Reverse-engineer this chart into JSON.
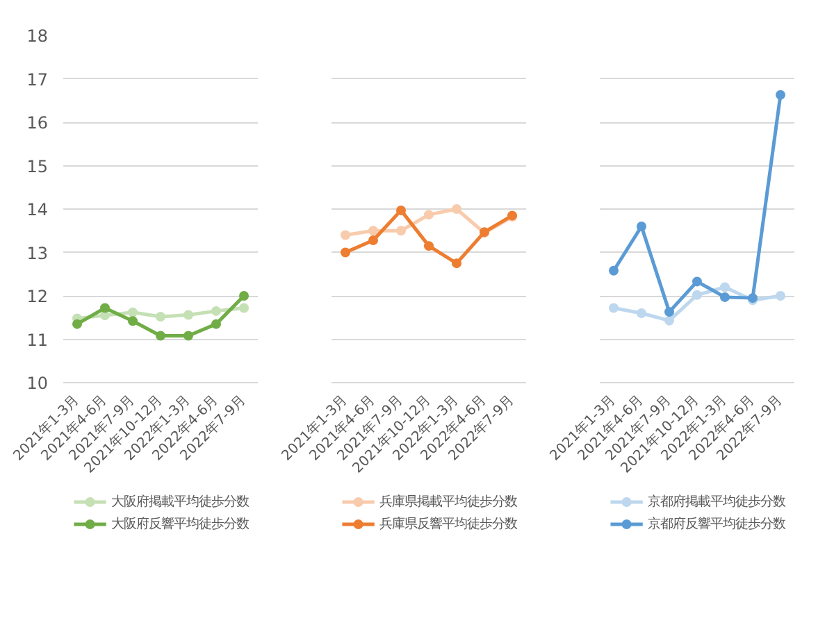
{
  "chart_data": [
    {
      "type": "line",
      "categories": [
        "2021年1-3月",
        "2021年4-6月",
        "2021年7-9月",
        "2021年10-12月",
        "2022年1-3月",
        "2022年4-6月",
        "2022年7-9月"
      ],
      "ylim": [
        10,
        18
      ],
      "yticks": [
        10,
        11,
        12,
        13,
        14,
        15,
        16,
        17,
        18
      ],
      "grid": "y",
      "legend": "bottom",
      "marker": "circle",
      "series": [
        {
          "name": "大阪府掲載平均徒歩分数",
          "color": "#c5e0b4",
          "values": [
            11.48,
            11.55,
            11.62,
            11.52,
            11.56,
            11.65,
            11.72
          ]
        },
        {
          "name": "大阪府反響平均徒歩分数",
          "color": "#70ad47",
          "values": [
            11.35,
            11.72,
            11.42,
            11.08,
            11.08,
            11.35,
            12.0
          ]
        }
      ]
    },
    {
      "type": "line",
      "categories": [
        "2021年1-3月",
        "2021年4-6月",
        "2021年7-9月",
        "2021年10-12月",
        "2022年1-3月",
        "2022年4-6月",
        "2022年7-9月"
      ],
      "ylim": [
        10,
        18
      ],
      "yticks": [
        10,
        11,
        12,
        13,
        14,
        15,
        16,
        17,
        18
      ],
      "tick_labels": "x",
      "grid": "y",
      "legend": "bottom",
      "marker": "circle",
      "series": [
        {
          "name": "兵庫県掲載平均徒歩分数",
          "color": "#f8cbad",
          "values": [
            13.4,
            13.5,
            13.5,
            13.87,
            14.0,
            13.45,
            13.82
          ]
        },
        {
          "name": "兵庫県反響平均徒歩分数",
          "color": "#ed7d31",
          "values": [
            13.0,
            13.28,
            13.97,
            13.15,
            12.75,
            13.47,
            13.85
          ]
        }
      ]
    },
    {
      "type": "line",
      "categories": [
        "2021年1-3月",
        "2021年4-6月",
        "2021年7-9月",
        "2021年10-12月",
        "2022年1-3月",
        "2022年4-6月",
        "2022年7-9月"
      ],
      "ylim": [
        10,
        18
      ],
      "yticks": [
        10,
        11,
        12,
        13,
        14,
        15,
        16,
        17,
        18
      ],
      "tick_labels": "x",
      "grid": "y",
      "legend": "bottom",
      "marker": "circle",
      "series": [
        {
          "name": "京都府掲載平均徒歩分数",
          "color": "#bdd7ee",
          "values": [
            11.72,
            11.6,
            11.43,
            12.02,
            12.2,
            11.9,
            12.0
          ]
        },
        {
          "name": "京都府反響平均徒歩分数",
          "color": "#5b9bd5",
          "values": [
            12.58,
            13.6,
            11.63,
            12.33,
            11.97,
            11.95,
            16.63
          ]
        }
      ]
    }
  ]
}
